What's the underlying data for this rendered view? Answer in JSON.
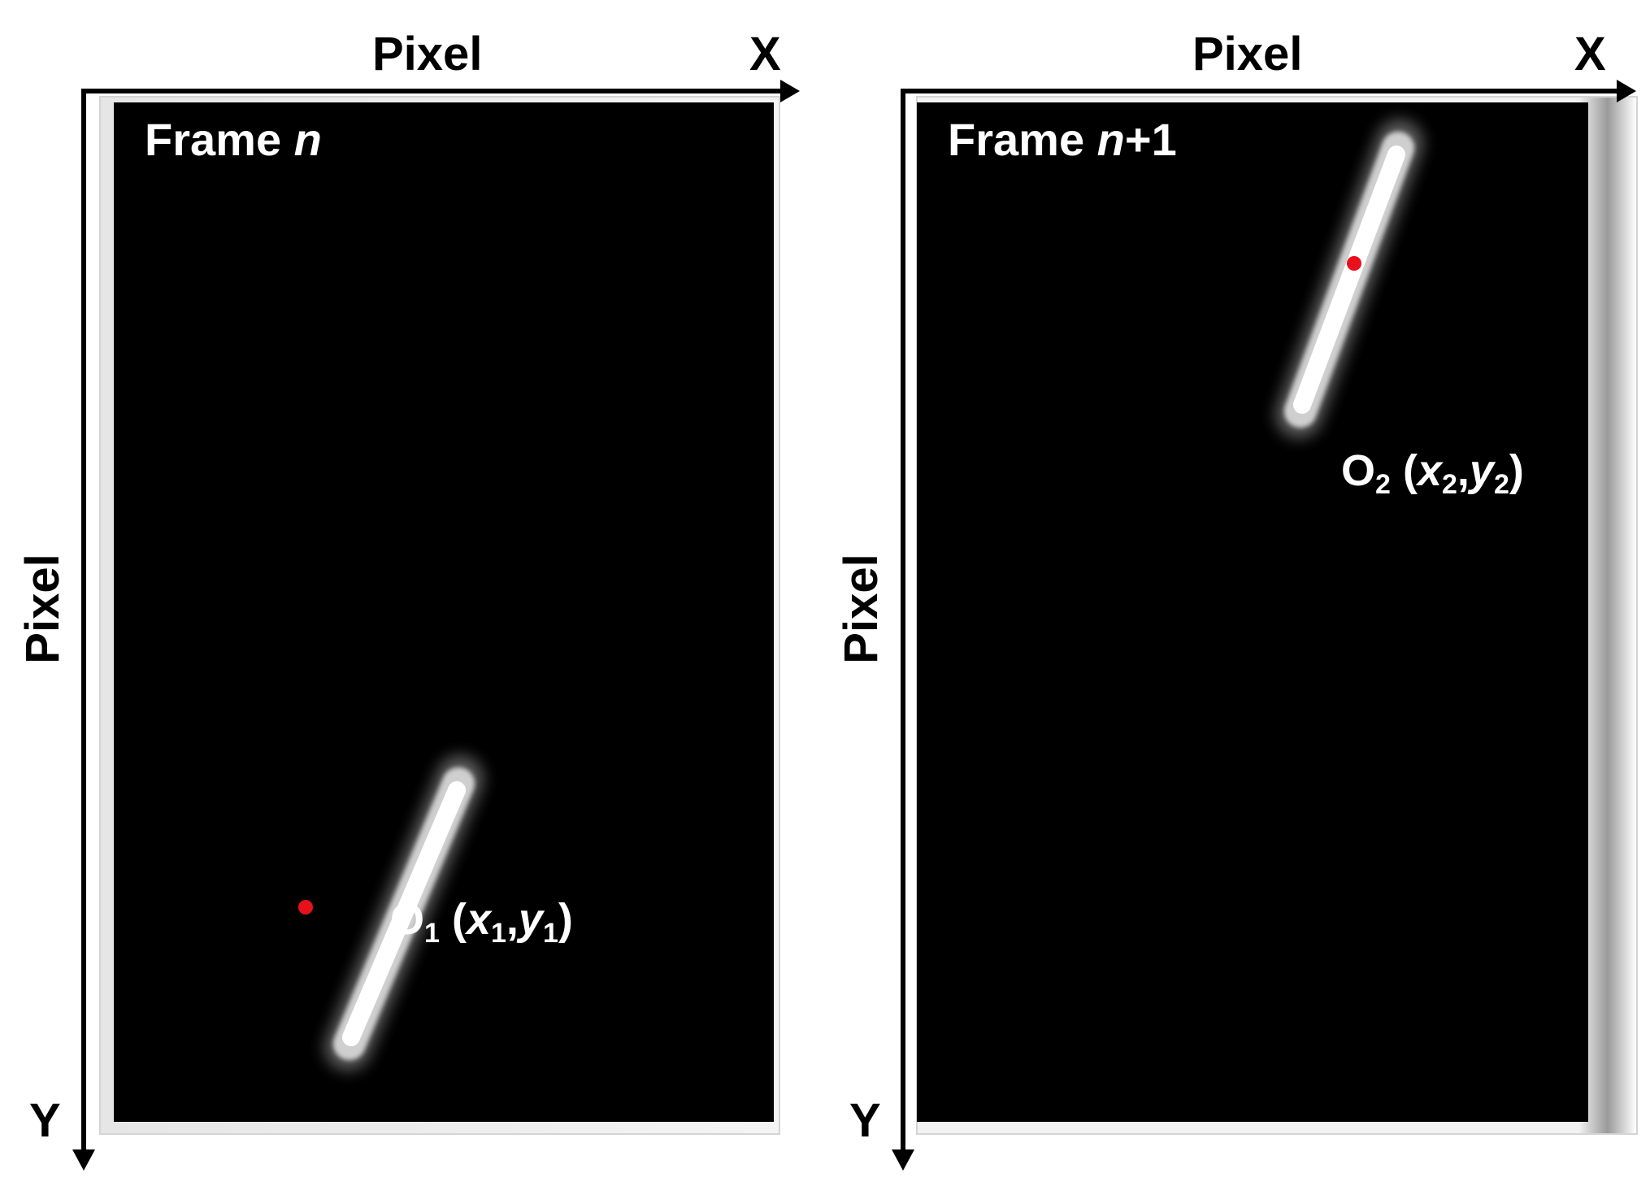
{
  "panels": [
    {
      "frame_prefix": "Frame ",
      "frame_index": "n",
      "frame_suffix": "",
      "x_axis_title": "Pixel",
      "y_axis_title": "Pixel",
      "x_axis_letter": "X",
      "y_axis_letter": "Y",
      "object": {
        "letter": "O",
        "index": "1",
        "open": " (",
        "x_var": "x",
        "x_sub": "1",
        "comma": ",",
        "y_var": "y",
        "y_sub": "1",
        "close": ")"
      },
      "centroid_color": "#e8101a"
    },
    {
      "frame_prefix": "Frame ",
      "frame_index": "n",
      "frame_suffix": "+1",
      "x_axis_title": "Pixel",
      "y_axis_title": "Pixel",
      "x_axis_letter": "X",
      "y_axis_letter": "Y",
      "object": {
        "letter": "O",
        "index": "2",
        "open": " (",
        "x_var": "x",
        "x_sub": "2",
        "comma": ",",
        "y_var": "y",
        "y_sub": "2",
        "close": ")"
      },
      "centroid_color": "#e8101a"
    }
  ]
}
